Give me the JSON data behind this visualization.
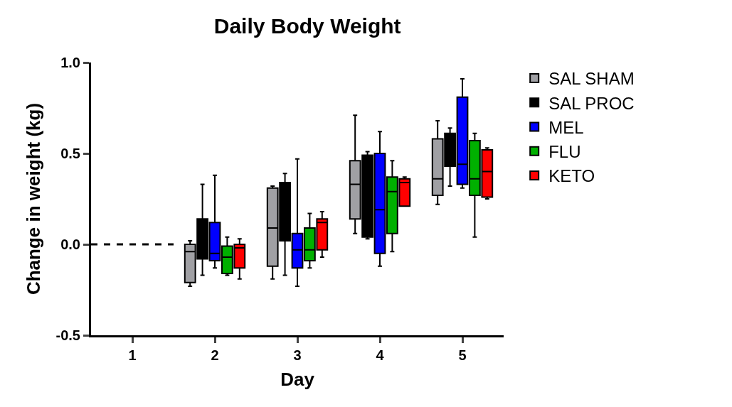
{
  "chart_data": {
    "type": "box",
    "title": "Daily Body Weight",
    "xlabel": "Day",
    "ylabel": "Change in weight (kg)",
    "categories": [
      "1",
      "2",
      "3",
      "4",
      "5"
    ],
    "ylim": [
      -0.5,
      1.0
    ],
    "yticks": [
      {
        "value": -0.5,
        "label": "-0.5"
      },
      {
        "value": 0.0,
        "label": "0.0"
      },
      {
        "value": 0.5,
        "label": "0.5"
      },
      {
        "value": 1.0,
        "label": "1.0"
      }
    ],
    "legend": "top right",
    "ref_lines": [
      {
        "axis": "y",
        "value": 0,
        "color": "#000000",
        "line_style": "dashed"
      }
    ],
    "series": [
      {
        "name": "SAL SHAM",
        "color": "#a0a0a4",
        "boxes": [
          null,
          {
            "low": -0.23,
            "q1": -0.21,
            "median": -0.04,
            "q3": 0.0,
            "high": 0.02
          },
          {
            "low": -0.19,
            "q1": -0.12,
            "median": 0.09,
            "q3": 0.31,
            "high": 0.32
          },
          {
            "low": 0.06,
            "q1": 0.14,
            "median": 0.33,
            "q3": 0.46,
            "high": 0.71
          },
          {
            "low": 0.22,
            "q1": 0.27,
            "median": 0.36,
            "q3": 0.58,
            "high": 0.68
          }
        ]
      },
      {
        "name": "SAL PROC",
        "color": "#000000",
        "boxes": [
          null,
          {
            "low": -0.17,
            "q1": -0.08,
            "median": 0.03,
            "q3": 0.14,
            "high": 0.33
          },
          {
            "low": -0.17,
            "q1": 0.02,
            "median": 0.15,
            "q3": 0.34,
            "high": 0.39
          },
          {
            "low": 0.03,
            "q1": 0.04,
            "median": 0.3,
            "q3": 0.49,
            "high": 0.51
          },
          {
            "low": 0.32,
            "q1": 0.43,
            "median": 0.5,
            "q3": 0.61,
            "high": 0.64
          }
        ]
      },
      {
        "name": "MEL",
        "color": "#0000ff",
        "boxes": [
          null,
          {
            "low": -0.13,
            "q1": -0.09,
            "median": -0.05,
            "q3": 0.12,
            "high": 0.38
          },
          {
            "low": -0.23,
            "q1": -0.13,
            "median": -0.03,
            "q3": 0.06,
            "high": 0.47
          },
          {
            "low": -0.12,
            "q1": -0.05,
            "median": 0.19,
            "q3": 0.5,
            "high": 0.62
          },
          {
            "low": 0.31,
            "q1": 0.33,
            "median": 0.44,
            "q3": 0.81,
            "high": 0.91
          }
        ]
      },
      {
        "name": "FLU",
        "color": "#00b000",
        "boxes": [
          null,
          {
            "low": -0.17,
            "q1": -0.16,
            "median": -0.07,
            "q3": -0.01,
            "high": 0.04
          },
          {
            "low": -0.13,
            "q1": -0.09,
            "median": -0.03,
            "q3": 0.09,
            "high": 0.17
          },
          {
            "low": -0.04,
            "q1": 0.06,
            "median": 0.29,
            "q3": 0.37,
            "high": 0.46
          },
          {
            "low": 0.04,
            "q1": 0.27,
            "median": 0.36,
            "q3": 0.57,
            "high": 0.61
          }
        ]
      },
      {
        "name": "KETO",
        "color": "#ff0000",
        "boxes": [
          null,
          {
            "low": -0.19,
            "q1": -0.13,
            "median": -0.02,
            "q3": 0.0,
            "high": 0.03
          },
          {
            "low": -0.07,
            "q1": -0.03,
            "median": 0.12,
            "q3": 0.14,
            "high": 0.18
          },
          {
            "low": 0.21,
            "q1": 0.21,
            "median": 0.34,
            "q3": 0.36,
            "high": 0.37
          },
          {
            "low": 0.25,
            "q1": 0.26,
            "median": 0.4,
            "q3": 0.52,
            "high": 0.53
          }
        ]
      }
    ]
  }
}
